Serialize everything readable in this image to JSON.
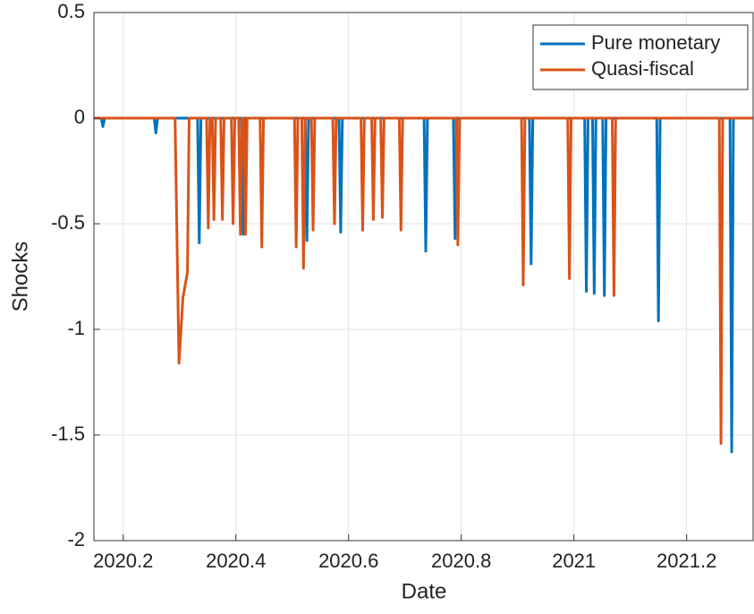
{
  "chart_data": {
    "type": "line",
    "xlabel": "Date",
    "ylabel": "Shocks",
    "xlim": [
      2020.148,
      2021.318
    ],
    "xticks": [
      2020.2,
      2020.4,
      2020.6,
      2020.8,
      2021,
      2021.2
    ],
    "ylim": [
      -2,
      0.5
    ],
    "yticks": [
      -2,
      -1.5,
      -1,
      -0.5,
      0,
      0.5
    ],
    "grid": true,
    "legend": "top-right",
    "series": [
      {
        "name": "Pure monetary",
        "color": "#0072BD",
        "x": [
          2020.148,
          2020.161,
          2020.164,
          2020.167,
          2020.255,
          2020.258,
          2020.261,
          2020.332,
          2020.335,
          2020.338,
          2020.41,
          2020.413,
          2020.416,
          2020.523,
          2020.526,
          2020.529,
          2020.583,
          2020.586,
          2020.589,
          2020.734,
          2020.737,
          2020.74,
          2020.786,
          2020.789,
          2020.792,
          2020.921,
          2020.924,
          2020.927,
          2021.019,
          2021.022,
          2021.025,
          2021.033,
          2021.036,
          2021.039,
          2021.051,
          2021.054,
          2021.057,
          2021.147,
          2021.15,
          2021.153,
          2021.277,
          2021.28,
          2021.283,
          2021.318
        ],
        "values": [
          0,
          0,
          -0.04,
          0,
          0,
          -0.07,
          0,
          0,
          -0.59,
          0,
          0,
          -0.55,
          0,
          0,
          -0.58,
          0,
          0,
          -0.54,
          0,
          0,
          -0.63,
          0,
          0,
          -0.57,
          0,
          0,
          -0.69,
          0,
          0,
          -0.82,
          0,
          0,
          -0.83,
          0,
          0,
          -0.84,
          0,
          0,
          -0.96,
          0,
          0,
          -1.58,
          0,
          0
        ]
      },
      {
        "name": "Quasi-fiscal",
        "color": "#D95319",
        "x": [
          2020.148,
          2020.292,
          2020.299,
          2020.306,
          2020.314,
          2020.317,
          2020.348,
          2020.351,
          2020.354,
          2020.358,
          2020.361,
          2020.364,
          2020.373,
          2020.376,
          2020.379,
          2020.392,
          2020.395,
          2020.398,
          2020.405,
          2020.408,
          2020.411,
          2020.414,
          2020.417,
          2020.42,
          2020.443,
          2020.446,
          2020.449,
          2020.504,
          2020.507,
          2020.51,
          2020.517,
          2020.52,
          2020.523,
          2020.534,
          2020.537,
          2020.54,
          2020.572,
          2020.575,
          2020.578,
          2020.622,
          2020.625,
          2020.628,
          2020.641,
          2020.644,
          2020.647,
          2020.657,
          2020.66,
          2020.663,
          2020.69,
          2020.693,
          2020.696,
          2020.791,
          2020.794,
          2020.797,
          2020.907,
          2020.91,
          2020.913,
          2020.989,
          2020.992,
          2020.995,
          2021.068,
          2021.071,
          2021.074,
          2021.258,
          2021.261,
          2021.264,
          2021.318
        ],
        "values": [
          0,
          0,
          -1.16,
          -0.85,
          -0.73,
          0,
          0,
          -0.52,
          0,
          0,
          -0.48,
          0,
          0,
          -0.48,
          0,
          0,
          -0.5,
          0,
          0,
          -0.55,
          0,
          0,
          -0.55,
          0,
          0,
          -0.61,
          0,
          0,
          -0.61,
          0,
          0,
          -0.71,
          0,
          0,
          -0.53,
          0,
          0,
          -0.5,
          0,
          0,
          -0.53,
          0,
          0,
          -0.48,
          0,
          0,
          -0.47,
          0,
          0,
          -0.53,
          0,
          0,
          -0.6,
          0,
          0,
          -0.79,
          0,
          0,
          -0.76,
          0,
          0,
          -0.84,
          0,
          0,
          -1.54,
          0,
          0
        ]
      }
    ]
  }
}
